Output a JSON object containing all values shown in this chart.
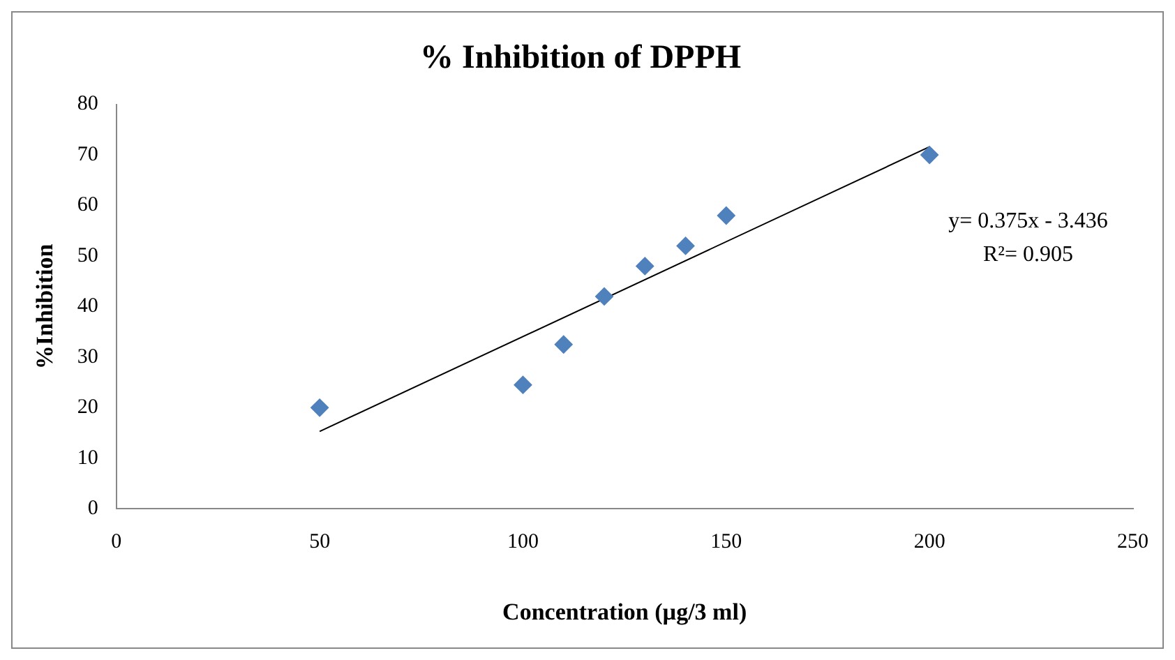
{
  "chart_data": {
    "type": "scatter",
    "title": "% Inhibition of DPPH",
    "xlabel": "Concentration (µg/3 ml)",
    "ylabel": "%Inhibition",
    "series": [
      {
        "type": "scatter",
        "color": "#4f81bd",
        "x": [
          50,
          100,
          110,
          120,
          130,
          140,
          150,
          200
        ],
        "values": [
          20,
          24.5,
          32.5,
          42,
          48,
          52,
          58,
          70
        ],
        "marker": "diamond"
      },
      {
        "type": "line",
        "color": "#000000",
        "x": [
          50,
          200
        ],
        "values": [
          15.3,
          71.6
        ],
        "marker": "none",
        "line_style": "solid"
      }
    ],
    "xlim": [
      0,
      250
    ],
    "xticks": [
      0,
      50,
      100,
      150,
      200,
      250
    ],
    "ylim": [
      0,
      80
    ],
    "yticks": [
      0,
      10,
      20,
      30,
      40,
      50,
      60,
      70,
      80
    ],
    "grid": false,
    "legend": false,
    "annotations": [
      "y= 0.375x - 3.436",
      "R²= 0.905"
    ]
  }
}
